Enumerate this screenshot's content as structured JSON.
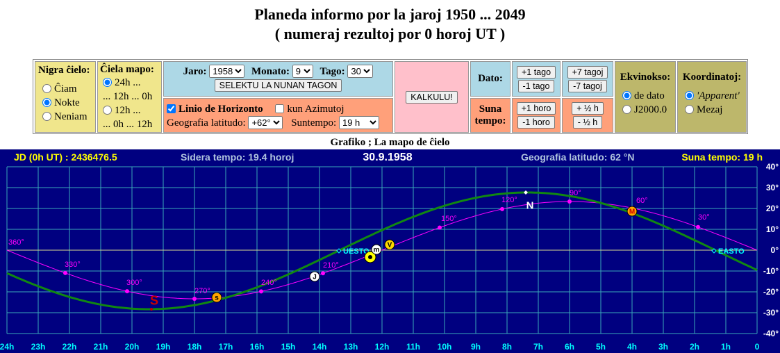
{
  "header": {
    "title": "Planeda informo por la jaroj 1950 ... 2049",
    "subtitle": "( numeraj rezultoj por 0 horoj UT )"
  },
  "controls": {
    "nigra_cielo": {
      "label": "Nigra ĉielo:",
      "options": [
        "Ĉiam",
        "Nokte",
        "Neniam"
      ],
      "selected": 1
    },
    "ciela_mapo": {
      "label": "Ĉiela mapo:",
      "options": [
        [
          "24h ...",
          "... 12h ... 0h"
        ],
        [
          "12h ...",
          "... 0h ... 12h"
        ]
      ],
      "selected": 0
    },
    "date": {
      "jaro_label": "Jaro:",
      "jaro": "1958",
      "monato_label": "Monato:",
      "monato": "9",
      "tago_label": "Tago:",
      "tago": "30",
      "button": "SELEKTU LA NUNAN TAGON"
    },
    "horizon": {
      "checkbox": "Linio de Horizonto",
      "checked": true,
      "azimuth": "kun Azimutoj",
      "azimuth_checked": false,
      "latitude_label": "Geografia latitudo:",
      "latitude": "+62°",
      "suntime_label": "Suntempo:",
      "suntime": "19 h"
    },
    "calculate": "KALKULU!",
    "dato": {
      "label": "Dato:",
      "buttons": [
        "+1 tago",
        "-1 tago",
        "+7 tagoj",
        "-7 tagoj"
      ]
    },
    "suna_tempo": {
      "label": "Suna tempo:",
      "buttons": [
        "+1 horo",
        "-1 horo",
        "+ ½ h",
        "- ½ h"
      ]
    },
    "ekvinokso": {
      "label": "Ekvinokso:",
      "options": [
        "de dato",
        "J2000.0"
      ],
      "selected": 0
    },
    "koordinatoj": {
      "label": "Koordinatoj:",
      "options": [
        "'Apparent'",
        "Mezaj"
      ],
      "selected": 0
    }
  },
  "map": {
    "title": "Grafiko ; La mapo de ĉielo",
    "jd": "JD (0h UT) : 2436476.5",
    "sidereal": "Sidera tempo: 19.4 horoj",
    "date": "30.9.1958",
    "latitude": "Geografia latitudo: 62 °N",
    "suntime": "Suna tempo: 19 h",
    "x_labels": [
      "24h",
      "23h",
      "22h",
      "21h",
      "20h",
      "19h",
      "18h",
      "17h",
      "16h",
      "15h",
      "14h",
      "13h",
      "12h",
      "11h",
      "10h",
      "9h",
      "8h",
      "7h",
      "6h",
      "5h",
      "4h",
      "3h",
      "2h",
      "1h",
      "0"
    ],
    "y_labels": [
      "40°",
      "30°",
      "20°",
      "10°",
      "0°",
      "-10°",
      "-20°",
      "-30°",
      "-40°"
    ],
    "ecliptic_labels": [
      "360°",
      "330°",
      "300°",
      "270°",
      "240°",
      "210°",
      "150°",
      "120°",
      "90°",
      "60°",
      "30°"
    ],
    "bodies": [
      "S",
      "s",
      "J",
      "m",
      "V",
      "N",
      "M"
    ],
    "horizon_labels": [
      "UESTO",
      "EASTO"
    ]
  }
}
